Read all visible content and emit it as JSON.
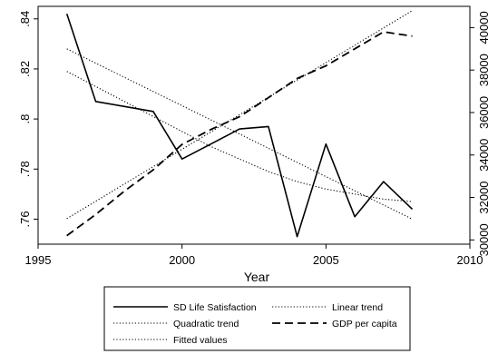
{
  "chart_data": {
    "type": "line",
    "xlabel": "Year",
    "x_ticks": [
      1995,
      2000,
      2005,
      2010
    ],
    "xlim": [
      1995,
      2010
    ],
    "y_left": {
      "ylim": [
        0.75,
        0.845
      ],
      "ticks": [
        0.76,
        0.78,
        0.8,
        0.82,
        0.84
      ],
      "tick_labels": [
        ".76",
        ".78",
        ".8",
        ".82",
        ".84"
      ]
    },
    "y_right": {
      "ylim": [
        29800,
        41000
      ],
      "ticks": [
        30000,
        32000,
        34000,
        36000,
        38000,
        40000
      ],
      "tick_labels": [
        "30000",
        "32000",
        "34000",
        "36000",
        "38000",
        "40000"
      ]
    },
    "series": [
      {
        "name": "SD Life Satisfaction",
        "axis": "left",
        "style": "solid",
        "x": [
          1996,
          1997,
          1998,
          1999,
          2000,
          2001,
          2002,
          2003,
          2004,
          2005,
          2006,
          2007,
          2008
        ],
        "y": [
          0.842,
          0.807,
          0.805,
          0.803,
          0.784,
          0.79,
          0.796,
          0.797,
          0.753,
          0.79,
          0.761,
          0.775,
          0.764
        ]
      },
      {
        "name": "Linear trend",
        "axis": "left",
        "style": "dotted",
        "x": [
          1996,
          2008
        ],
        "y": [
          0.828,
          0.76
        ]
      },
      {
        "name": "Quadratic trend",
        "axis": "left",
        "style": "dotted",
        "x": [
          1996,
          1997,
          1998,
          1999,
          2000,
          2001,
          2002,
          2003,
          2004,
          2005,
          2006,
          2007,
          2008
        ],
        "y": [
          0.819,
          0.813,
          0.807,
          0.801,
          0.795,
          0.789,
          0.784,
          0.779,
          0.775,
          0.772,
          0.77,
          0.768,
          0.767
        ]
      },
      {
        "name": "GDP per capita",
        "axis": "right",
        "style": "dashed",
        "x": [
          1996,
          1997,
          1998,
          1999,
          2000,
          2001,
          2002,
          2003,
          2004,
          2005,
          2006,
          2007,
          2008
        ],
        "y": [
          30200,
          31200,
          32300,
          33300,
          34500,
          35200,
          35800,
          36700,
          37600,
          38200,
          39000,
          39800,
          39600
        ]
      },
      {
        "name": "Fitted values",
        "axis": "right",
        "style": "dotted",
        "x": [
          1996,
          2008
        ],
        "y": [
          31000,
          40800
        ]
      }
    ],
    "legend": {
      "position": "bottom",
      "columns": 2,
      "items": [
        "SD Life Satisfaction",
        "Linear trend",
        "Quadratic trend",
        "GDP per capita",
        "Fitted values"
      ]
    },
    "grid": false
  }
}
